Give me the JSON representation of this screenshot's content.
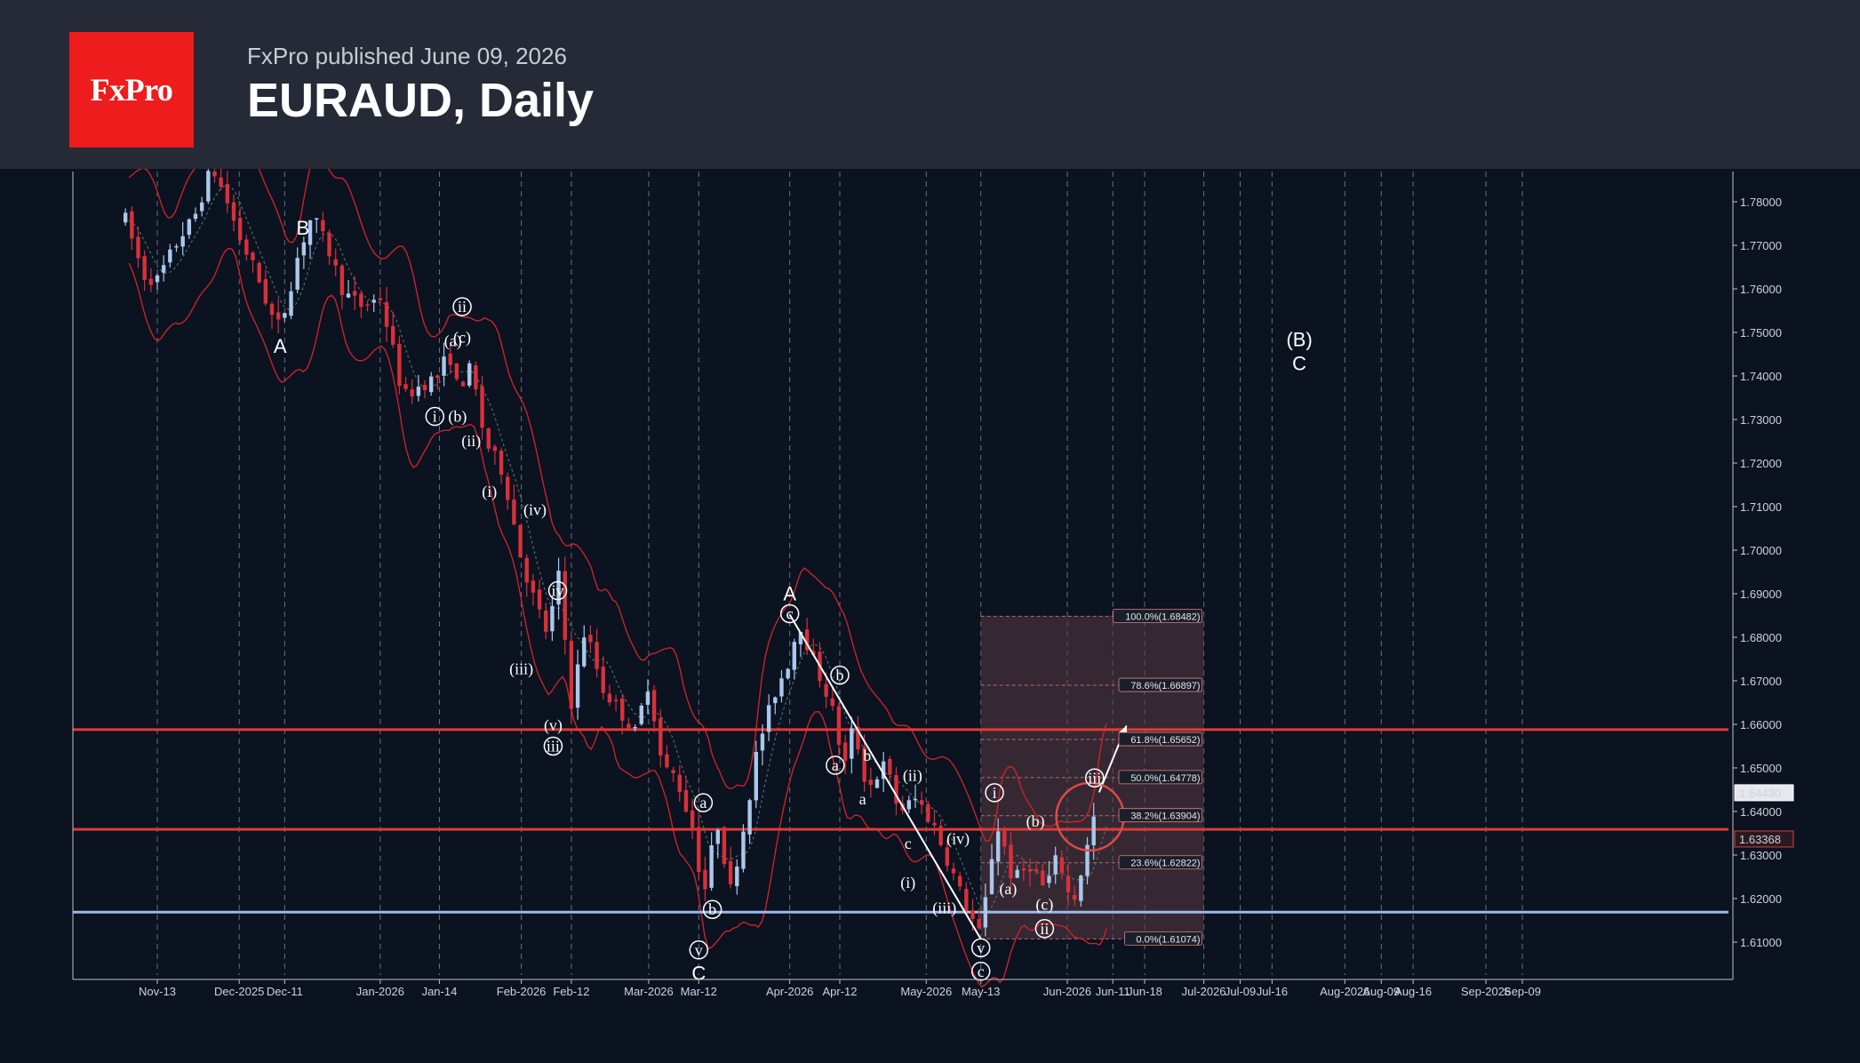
{
  "header": {
    "logo_text": "FxPro",
    "published": "FxPro published June 09, 2026",
    "title": "EURAUD, Daily"
  },
  "colors": {
    "background": "#0b1220",
    "header_bg": "#262a36",
    "logo_red": "#ee1c1c",
    "bull": "#a9c8ec",
    "bear": "#d9303a",
    "bands": "#c8242a",
    "resistance_line": "#e03a3a",
    "support_line": "#9db8ea"
  },
  "chart_data": {
    "type": "candlestick",
    "symbol": "EURAUD",
    "timeframe": "Daily",
    "ylim": [
      1.6,
      1.787
    ],
    "y_ticks": [
      "1.78000",
      "1.77000",
      "1.76000",
      "1.75000",
      "1.74000",
      "1.73000",
      "1.72000",
      "1.71000",
      "1.70000",
      "1.69000",
      "1.68000",
      "1.67000",
      "1.66000",
      "1.65000",
      "1.64000",
      "1.63000",
      "1.62000",
      "1.61000"
    ],
    "x_ticks": [
      {
        "label": "Nov-13",
        "date": "2025-11-13"
      },
      {
        "label": "Dec-2025",
        "date": "2025-12-01"
      },
      {
        "label": "Dec-11",
        "date": "2025-12-11"
      },
      {
        "label": "Jan-2026",
        "date": "2026-01-01"
      },
      {
        "label": "Jan-14",
        "date": "2026-01-14"
      },
      {
        "label": "Feb-2026",
        "date": "2026-02-01"
      },
      {
        "label": "Feb-12",
        "date": "2026-02-12"
      },
      {
        "label": "Mar-2026",
        "date": "2026-03-01"
      },
      {
        "label": "Mar-12",
        "date": "2026-03-12"
      },
      {
        "label": "Apr-2026",
        "date": "2026-04-01"
      },
      {
        "label": "Apr-12",
        "date": "2026-04-12"
      },
      {
        "label": "May-2026",
        "date": "2026-05-01"
      },
      {
        "label": "May-13",
        "date": "2026-05-13"
      },
      {
        "label": "Jun-2026",
        "date": "2026-06-01"
      },
      {
        "label": "Jun-11",
        "date": "2026-06-11"
      },
      {
        "label": "Jun-18",
        "date": "2026-06-18"
      },
      {
        "label": "Jul-2026",
        "date": "2026-07-01"
      },
      {
        "label": "Jul-09",
        "date": "2026-07-09"
      },
      {
        "label": "Jul-16",
        "date": "2026-07-16"
      },
      {
        "label": "Aug-2026",
        "date": "2026-08-01"
      },
      {
        "label": "Aug-09",
        "date": "2026-08-09"
      },
      {
        "label": "Aug-16",
        "date": "2026-08-16"
      },
      {
        "label": "Sep-2026",
        "date": "2026-09-01"
      },
      {
        "label": "Sep-09",
        "date": "2026-09-09"
      }
    ],
    "price_path": [
      [
        "2025-11-06",
        1.776
      ],
      [
        "2025-11-10",
        1.763
      ],
      [
        "2025-11-13",
        1.762
      ],
      [
        "2025-11-18",
        1.772
      ],
      [
        "2025-11-21",
        1.776
      ],
      [
        "2025-11-25",
        1.788
      ],
      [
        "2025-11-28",
        1.781
      ],
      [
        "2025-12-01",
        1.772
      ],
      [
        "2025-12-05",
        1.763
      ],
      [
        "2025-12-08",
        1.754
      ],
      [
        "2025-12-10",
        1.751
      ],
      [
        "2025-12-14",
        1.768
      ],
      [
        "2025-12-17",
        1.777
      ],
      [
        "2025-12-21",
        1.768
      ],
      [
        "2025-12-24",
        1.759
      ],
      [
        "2025-12-28",
        1.756
      ],
      [
        "2026-01-01",
        1.758
      ],
      [
        "2026-01-04",
        1.745
      ],
      [
        "2026-01-06",
        1.735
      ],
      [
        "2026-01-10",
        1.738
      ],
      [
        "2026-01-14",
        1.74
      ],
      [
        "2026-01-16",
        1.746
      ],
      [
        "2026-01-18",
        1.737
      ],
      [
        "2026-01-21",
        1.742
      ],
      [
        "2026-01-24",
        1.725
      ],
      [
        "2026-01-28",
        1.718
      ],
      [
        "2026-02-01",
        1.698
      ],
      [
        "2026-02-04",
        1.688
      ],
      [
        "2026-02-07",
        1.68
      ],
      [
        "2026-02-09",
        1.696
      ],
      [
        "2026-02-12",
        1.665
      ],
      [
        "2026-02-15",
        1.682
      ],
      [
        "2026-02-19",
        1.668
      ],
      [
        "2026-02-22",
        1.664
      ],
      [
        "2026-02-26",
        1.658
      ],
      [
        "2026-03-01",
        1.67
      ],
      [
        "2026-03-04",
        1.65
      ],
      [
        "2026-03-07",
        1.648
      ],
      [
        "2026-03-11",
        1.635
      ],
      [
        "2026-03-13",
        1.62
      ],
      [
        "2026-03-16",
        1.638
      ],
      [
        "2026-03-19",
        1.622
      ],
      [
        "2026-03-22",
        1.637
      ],
      [
        "2026-03-25",
        1.655
      ],
      [
        "2026-03-29",
        1.668
      ],
      [
        "2026-04-01",
        1.675
      ],
      [
        "2026-04-03",
        1.684
      ],
      [
        "2026-04-06",
        1.675
      ],
      [
        "2026-04-10",
        1.665
      ],
      [
        "2026-04-13",
        1.65
      ],
      [
        "2026-04-15",
        1.66
      ],
      [
        "2026-04-18",
        1.645
      ],
      [
        "2026-04-22",
        1.651
      ],
      [
        "2026-04-25",
        1.64
      ],
      [
        "2026-04-29",
        1.643
      ],
      [
        "2026-05-03",
        1.636
      ],
      [
        "2026-05-06",
        1.628
      ],
      [
        "2026-05-09",
        1.62
      ],
      [
        "2026-05-13",
        1.611
      ],
      [
        "2026-05-15",
        1.628
      ],
      [
        "2026-05-17",
        1.637
      ],
      [
        "2026-05-20",
        1.624
      ],
      [
        "2026-05-24",
        1.628
      ],
      [
        "2026-05-27",
        1.622
      ],
      [
        "2026-05-30",
        1.63
      ],
      [
        "2026-06-02",
        1.618
      ],
      [
        "2026-06-05",
        1.63
      ],
      [
        "2026-06-08",
        1.644
      ]
    ]
  },
  "price_axis": {
    "current_price": "1.64430",
    "level_price": "1.63368"
  },
  "levels": [
    {
      "price": 1.6588,
      "color": "#e03a3a",
      "kind": "resistance"
    },
    {
      "price": 1.6359,
      "color": "#e03a3a",
      "kind": "resistance"
    },
    {
      "price": 1.6169,
      "color": "#9db8ea",
      "kind": "support"
    }
  ],
  "fibonacci": {
    "from_date": "2026-05-13",
    "to_date": "2026-07-01",
    "levels": [
      {
        "label": "100.0%(1.68482)",
        "price": 1.68482
      },
      {
        "label": "78.6%(1.66897)",
        "price": 1.66897
      },
      {
        "label": "61.8%(1.65652)",
        "price": 1.65652
      },
      {
        "label": "50.0%(1.64778)",
        "price": 1.64778
      },
      {
        "label": "38.2%(1.63904)",
        "price": 1.63904
      },
      {
        "label": "23.6%(1.62822)",
        "price": 1.62822
      },
      {
        "label": "0.0%(1.61074)",
        "price": 1.61074
      }
    ]
  },
  "wave_labels": [
    {
      "text": "B",
      "date": "2025-12-15",
      "price": 1.7737,
      "style": "big"
    },
    {
      "text": "A",
      "date": "2025-12-10",
      "price": 1.7465,
      "style": "big"
    },
    {
      "text": "ii",
      "date": "2026-01-19",
      "price": 1.7557,
      "style": "circle"
    },
    {
      "text": "(a)",
      "date": "2026-01-17",
      "price": 1.7481,
      "style": "plain"
    },
    {
      "text": "(c)",
      "date": "2026-01-19",
      "price": 1.7489,
      "style": "plain"
    },
    {
      "text": "i",
      "date": "2026-01-13",
      "price": 1.7305,
      "style": "circle"
    },
    {
      "text": "(b)",
      "date": "2026-01-18",
      "price": 1.7307,
      "style": "plain"
    },
    {
      "text": "(ii)",
      "date": "2026-01-21",
      "price": 1.7251,
      "style": "plain"
    },
    {
      "text": "(i)",
      "date": "2026-01-25",
      "price": 1.7135,
      "style": "plain"
    },
    {
      "text": "(iv)",
      "date": "2026-02-04",
      "price": 1.7093,
      "style": "plain"
    },
    {
      "text": "iv",
      "date": "2026-02-09",
      "price": 1.6905,
      "style": "circle"
    },
    {
      "text": "(iii)",
      "date": "2026-02-01",
      "price": 1.6728,
      "style": "plain"
    },
    {
      "text": "(v)",
      "date": "2026-02-08",
      "price": 1.6598,
      "style": "plain"
    },
    {
      "text": "iii",
      "date": "2026-02-08",
      "price": 1.6548,
      "style": "circle"
    },
    {
      "text": "a",
      "date": "2026-03-13",
      "price": 1.6418,
      "style": "circle"
    },
    {
      "text": "b",
      "date": "2026-03-15",
      "price": 1.6173,
      "style": "circle"
    },
    {
      "text": "v",
      "date": "2026-03-12",
      "price": 1.608,
      "style": "circle"
    },
    {
      "text": "C",
      "date": "2026-03-12",
      "price": 1.6026,
      "style": "big"
    },
    {
      "text": "A",
      "date": "2026-04-01",
      "price": 1.6897,
      "style": "big"
    },
    {
      "text": "c",
      "date": "2026-04-01",
      "price": 1.6852,
      "style": "circle"
    },
    {
      "text": "b",
      "date": "2026-04-12",
      "price": 1.6711,
      "style": "circle"
    },
    {
      "text": "a",
      "date": "2026-04-11",
      "price": 1.6504,
      "style": "circle"
    },
    {
      "text": "b",
      "date": "2026-04-18",
      "price": 1.6529,
      "style": "plain"
    },
    {
      "text": "a",
      "date": "2026-04-17",
      "price": 1.6429,
      "style": "plain"
    },
    {
      "text": "c",
      "date": "2026-04-27",
      "price": 1.6327,
      "style": "plain"
    },
    {
      "text": "(ii)",
      "date": "2026-04-28",
      "price": 1.6483,
      "style": "plain"
    },
    {
      "text": "(i)",
      "date": "2026-04-27",
      "price": 1.6237,
      "style": "plain"
    },
    {
      "text": "(iv)",
      "date": "2026-05-08",
      "price": 1.6338,
      "style": "plain"
    },
    {
      "text": "(iii)",
      "date": "2026-05-05",
      "price": 1.6179,
      "style": "plain"
    },
    {
      "text": "v",
      "date": "2026-05-13",
      "price": 1.6085,
      "style": "circle"
    },
    {
      "text": "c",
      "date": "2026-05-13",
      "price": 1.6031,
      "style": "circle"
    },
    {
      "text": "i",
      "date": "2026-05-16",
      "price": 1.6441,
      "style": "circle"
    },
    {
      "text": "(a)",
      "date": "2026-05-19",
      "price": 1.6222,
      "style": "plain"
    },
    {
      "text": "(b)",
      "date": "2026-05-25",
      "price": 1.6378,
      "style": "plain"
    },
    {
      "text": "(c)",
      "date": "2026-05-27",
      "price": 1.6187,
      "style": "plain"
    },
    {
      "text": "ii",
      "date": "2026-05-27",
      "price": 1.6129,
      "style": "circle"
    },
    {
      "text": "iii",
      "date": "2026-06-07",
      "price": 1.6475,
      "style": "circle"
    },
    {
      "text": "(B)",
      "date": "2026-07-22",
      "price": 1.7481,
      "style": "big"
    },
    {
      "text": "C",
      "date": "2026-07-22",
      "price": 1.7426,
      "style": "big"
    }
  ]
}
